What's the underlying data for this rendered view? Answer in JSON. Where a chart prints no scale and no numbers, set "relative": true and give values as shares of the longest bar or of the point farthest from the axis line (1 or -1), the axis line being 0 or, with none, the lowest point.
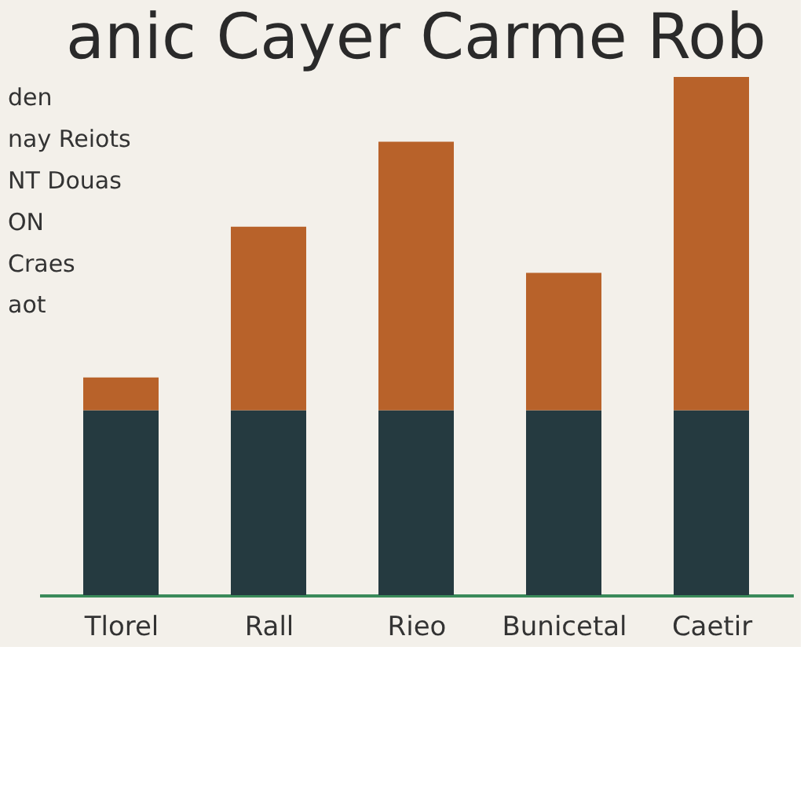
{
  "chart_data": {
    "type": "bar",
    "stacked": true,
    "relative": true,
    "title": "anic Cayer Carme Rob",
    "categories": [
      "Tlorel",
      "Rall",
      "Rieo",
      "Bunicetal",
      "Caetir"
    ],
    "series": [
      {
        "color": "#253a40",
        "values": [
          0.357,
          0.357,
          0.357,
          0.357,
          0.357
        ]
      },
      {
        "color": "#b8622a",
        "values": [
          0.063,
          0.354,
          0.518,
          0.265,
          0.643
        ]
      }
    ],
    "annotations": [
      "den",
      "nay Reiots",
      "NT Douas",
      "ON",
      "Craes",
      "aot"
    ],
    "tick_labels": "x"
  }
}
